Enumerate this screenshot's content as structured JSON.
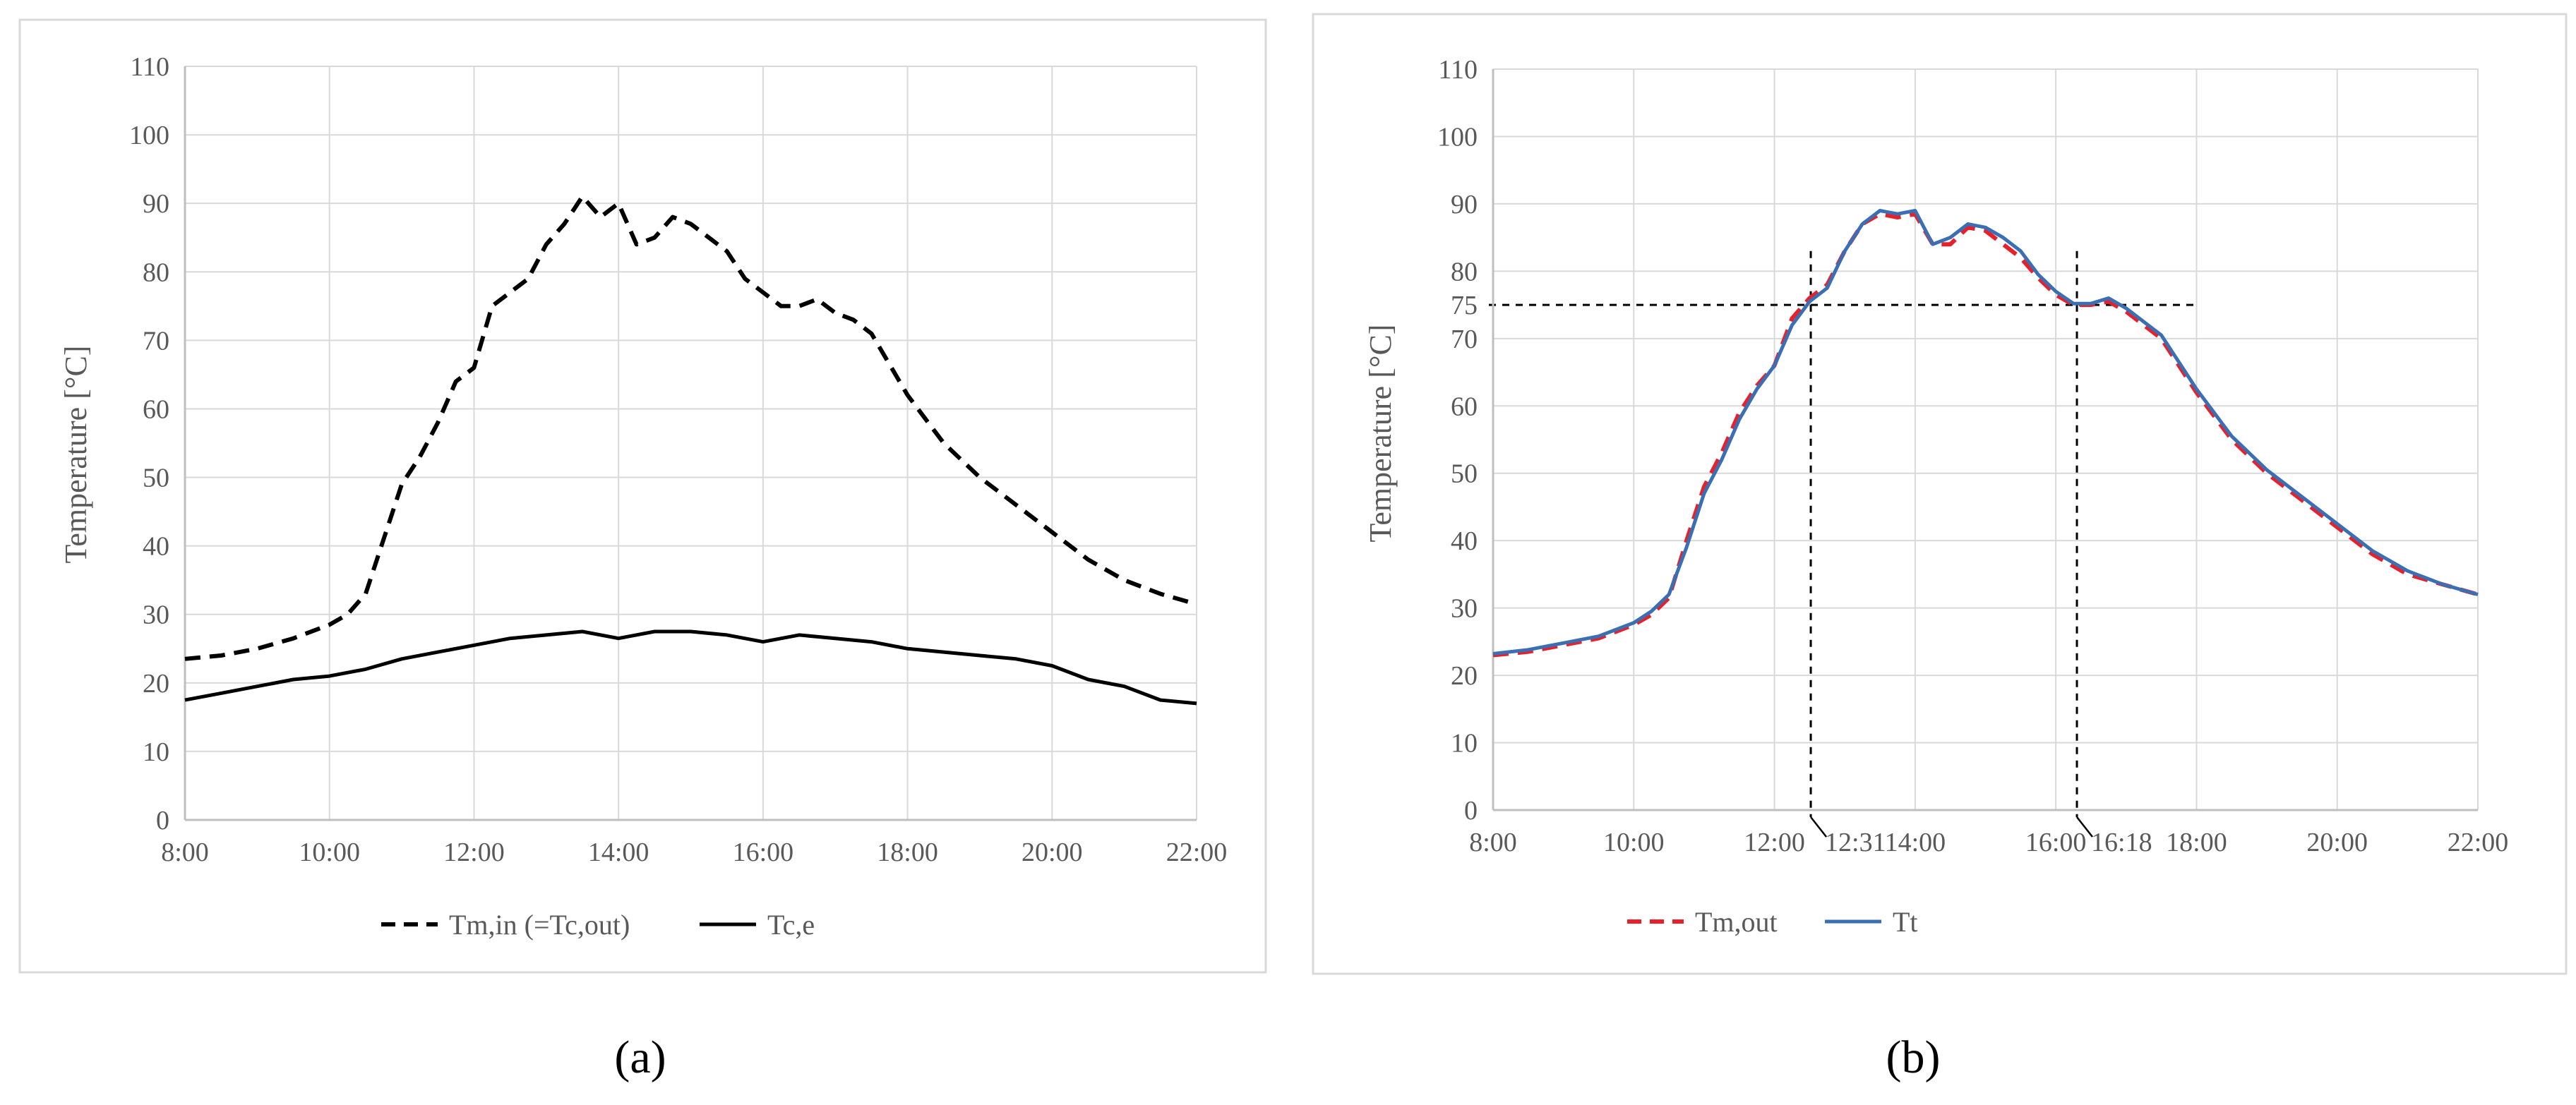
{
  "chart_data": [
    {
      "type": "line",
      "panel_label": "(a)",
      "ylabel": "Temperature [°C]",
      "xlabel": "",
      "ylim": [
        0,
        110
      ],
      "yticks": [
        0,
        10,
        20,
        30,
        40,
        50,
        60,
        70,
        80,
        90,
        100,
        110
      ],
      "xlim": [
        "8:00",
        "22:00"
      ],
      "xticks": [
        "8:00",
        "10:00",
        "12:00",
        "14:00",
        "16:00",
        "18:00",
        "20:00",
        "22:00"
      ],
      "grid": "horizontal",
      "legend_position": "bottom",
      "series": [
        {
          "name": "Tm,in (=Tc,out)",
          "color": "#000000",
          "style": "dashed",
          "x": [
            "8:00",
            "8:30",
            "9:00",
            "9:30",
            "10:00",
            "10:15",
            "10:30",
            "10:45",
            "11:00",
            "11:15",
            "11:30",
            "11:45",
            "12:00",
            "12:15",
            "12:30",
            "12:45",
            "13:00",
            "13:15",
            "13:30",
            "13:45",
            "14:00",
            "14:15",
            "14:30",
            "14:45",
            "15:00",
            "15:15",
            "15:30",
            "15:45",
            "16:00",
            "16:15",
            "16:30",
            "16:45",
            "17:00",
            "17:15",
            "17:30",
            "18:00",
            "18:30",
            "19:00",
            "19:30",
            "20:00",
            "20:30",
            "21:00",
            "21:30",
            "22:00"
          ],
          "y": [
            23.5,
            24,
            25,
            26.5,
            28.5,
            30,
            33,
            41,
            49,
            53,
            58,
            64,
            66,
            75,
            77,
            79,
            84,
            87,
            91,
            88,
            90,
            84,
            85,
            88,
            87,
            85,
            83,
            79,
            77,
            75,
            75,
            76,
            74,
            73,
            71,
            62,
            55,
            50,
            46,
            42,
            38,
            35,
            33,
            31.5
          ]
        },
        {
          "name": "Tc,e",
          "color": "#000000",
          "style": "solid",
          "x": [
            "8:00",
            "8:30",
            "9:00",
            "9:30",
            "10:00",
            "10:30",
            "11:00",
            "11:30",
            "12:00",
            "12:30",
            "13:00",
            "13:30",
            "14:00",
            "14:30",
            "15:00",
            "15:30",
            "16:00",
            "16:30",
            "17:00",
            "17:30",
            "18:00",
            "18:30",
            "19:00",
            "19:30",
            "20:00",
            "20:30",
            "21:00",
            "21:30",
            "22:00"
          ],
          "y": [
            17.5,
            18.5,
            19.5,
            20.5,
            21,
            22,
            23.5,
            24.5,
            25.5,
            26.5,
            27,
            27.5,
            26.5,
            27.5,
            27.5,
            27,
            26,
            27,
            26.5,
            26,
            25,
            24.5,
            24,
            23.5,
            22.5,
            20.5,
            19.5,
            17.5,
            17
          ]
        }
      ]
    },
    {
      "type": "line",
      "panel_label": "(b)",
      "ylabel": "Temperature [°C]",
      "xlabel": "",
      "ylim": [
        0,
        110
      ],
      "yticks": [
        0,
        10,
        20,
        30,
        40,
        50,
        60,
        70,
        75,
        80,
        90,
        100,
        110
      ],
      "xlim": [
        "8:00",
        "22:00"
      ],
      "xticks": [
        "8:00",
        "10:00",
        "12:00",
        "14:00",
        "16:00",
        "18:00",
        "20:00",
        "22:00"
      ],
      "grid": "horizontal",
      "legend_position": "bottom",
      "annotations": [
        {
          "type": "hline",
          "y": 75,
          "x_from": "8:00",
          "x_to": "18:00",
          "style": "dotted"
        },
        {
          "type": "vline",
          "x": "12:31",
          "label": "12:31",
          "style": "dotted"
        },
        {
          "type": "vline",
          "x": "16:18",
          "label": "16:18",
          "style": "dotted"
        }
      ],
      "series": [
        {
          "name": "Tm,out",
          "color": "#e8202a",
          "style": "dashed",
          "x": [
            "8:00",
            "8:30",
            "9:00",
            "9:30",
            "10:00",
            "10:15",
            "10:30",
            "10:45",
            "11:00",
            "11:15",
            "11:30",
            "11:45",
            "12:00",
            "12:15",
            "12:30",
            "12:45",
            "13:00",
            "13:15",
            "13:30",
            "13:45",
            "14:00",
            "14:15",
            "14:30",
            "14:45",
            "15:00",
            "15:15",
            "15:30",
            "15:45",
            "16:00",
            "16:15",
            "16:30",
            "16:45",
            "17:00",
            "17:15",
            "17:30",
            "18:00",
            "18:30",
            "19:00",
            "19:30",
            "20:00",
            "20:30",
            "21:00",
            "21:30",
            "22:00"
          ],
          "y": [
            23,
            23.5,
            24.5,
            25.5,
            27.5,
            29,
            31.5,
            40,
            48,
            53,
            59,
            63,
            66,
            73,
            76,
            78,
            83,
            87,
            88.5,
            88,
            88.5,
            84,
            84,
            86.5,
            86,
            84,
            82,
            79,
            76.5,
            75,
            75,
            75.5,
            74,
            72,
            70,
            62,
            55,
            50,
            46,
            42,
            38,
            35,
            33.5,
            32
          ]
        },
        {
          "name": "Tt",
          "color": "#3a6fb4",
          "style": "solid",
          "x": [
            "8:00",
            "8:30",
            "9:00",
            "9:30",
            "10:00",
            "10:15",
            "10:30",
            "10:45",
            "11:00",
            "11:15",
            "11:30",
            "11:45",
            "12:00",
            "12:15",
            "12:30",
            "12:45",
            "13:00",
            "13:15",
            "13:30",
            "13:45",
            "14:00",
            "14:15",
            "14:30",
            "14:45",
            "15:00",
            "15:15",
            "15:30",
            "15:45",
            "16:00",
            "16:15",
            "16:30",
            "16:45",
            "17:00",
            "17:15",
            "17:30",
            "18:00",
            "18:30",
            "19:00",
            "19:30",
            "20:00",
            "20:30",
            "21:00",
            "21:30",
            "22:00"
          ],
          "y": [
            23.2,
            23.8,
            24.8,
            25.8,
            27.8,
            29.5,
            32,
            39,
            47,
            52,
            58,
            62.5,
            66,
            72,
            75.5,
            77.5,
            83,
            87,
            89,
            88.5,
            89,
            84,
            85,
            87,
            86.5,
            85,
            83,
            79.5,
            77,
            75.2,
            75.2,
            76,
            74.5,
            72.5,
            70.5,
            62.5,
            55.5,
            50.5,
            46.5,
            42.5,
            38.5,
            35.5,
            33.5,
            32
          ]
        }
      ]
    }
  ]
}
